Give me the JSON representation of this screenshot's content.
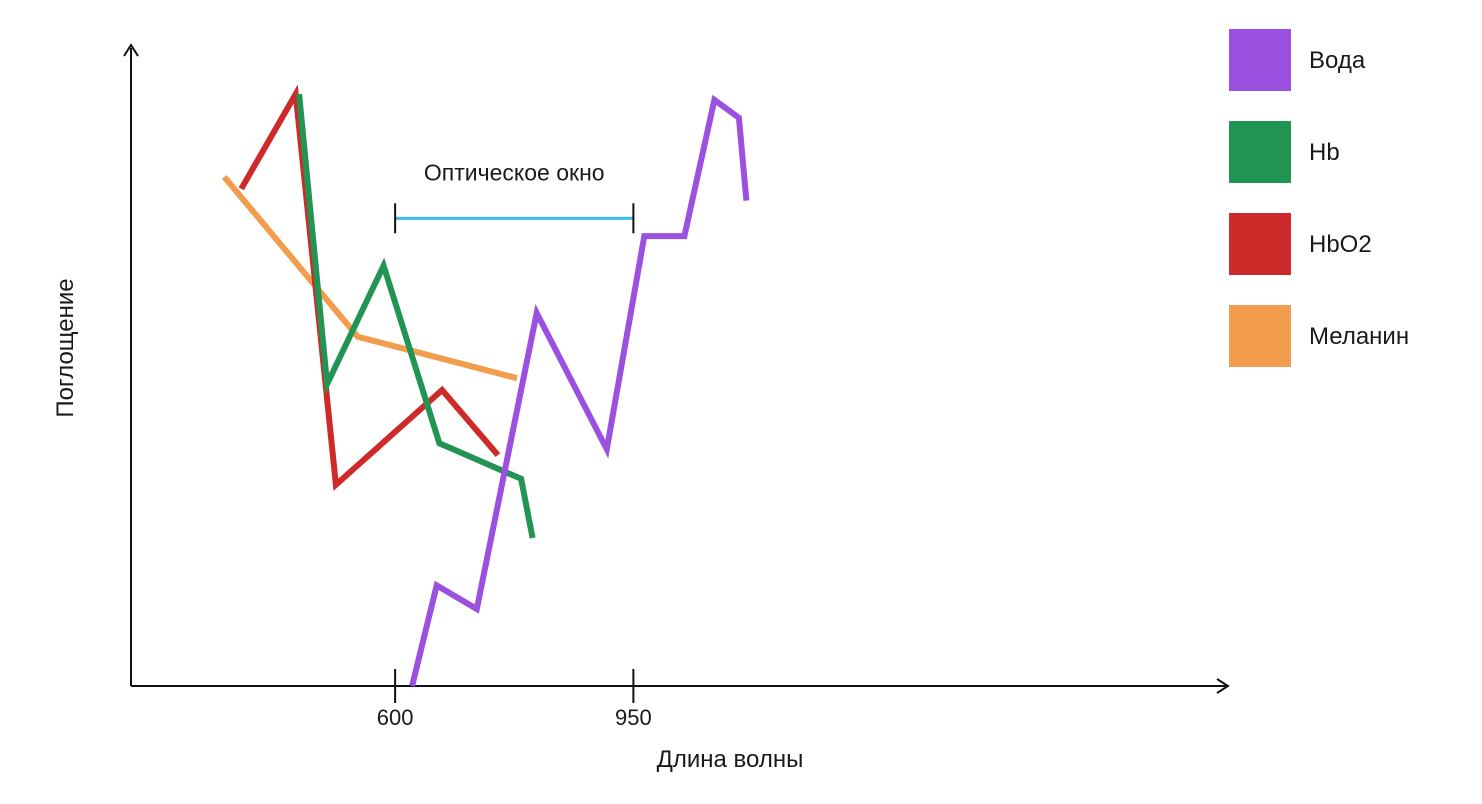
{
  "chart_data": {
    "type": "line",
    "title": "",
    "xlabel": "Длина волны",
    "ylabel": "Поглощение",
    "x_ticks": [
      600,
      950
    ],
    "xlim": [
      212,
      1822
    ],
    "ylim": [
      0,
      100
    ],
    "grid": false,
    "legend_position": "right",
    "annotation": {
      "label": "Оптическое окно",
      "from": 600,
      "to": 950,
      "y": 79,
      "color": "#3bbcf0"
    },
    "series": [
      {
        "name": "Вода",
        "color": "#9b50e0",
        "x": [
          625,
          661,
          720,
          808,
          911,
          966,
          1025,
          1069,
          1105,
          1116
        ],
        "y": [
          0,
          17,
          13,
          63,
          40,
          76,
          76,
          99,
          96,
          82
        ]
      },
      {
        "name": "Hb",
        "color": "#229453",
        "x": [
          459,
          500,
          583,
          665,
          785,
          802
        ],
        "y": [
          100,
          51,
          71,
          41,
          35,
          25
        ]
      },
      {
        "name": "HbO2",
        "color": "#cf2a2a",
        "x": [
          374,
          454,
          513,
          669,
          751
        ],
        "y": [
          84,
          100,
          34,
          50,
          39
        ]
      },
      {
        "name": "Меланин",
        "color": "#f29d4d",
        "x": [
          349,
          545,
          779
        ],
        "y": [
          86,
          59,
          52
        ]
      }
    ]
  }
}
